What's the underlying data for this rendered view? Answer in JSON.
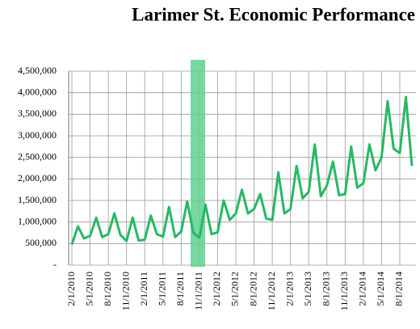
{
  "chart_data": {
    "type": "line",
    "title": "Larimer St. Economic Performance",
    "categories": [
      "2/1/2010",
      null,
      null,
      "5/1/2010",
      null,
      null,
      "8/1/2010",
      null,
      null,
      "11/1/2010",
      null,
      null,
      "2/1/2011",
      null,
      null,
      "5/1/2011",
      null,
      null,
      "8/1/2011",
      null,
      null,
      "11/1/2011",
      null,
      null,
      "2/1/2012",
      null,
      null,
      "5/1/2012",
      null,
      null,
      "8/1/2012",
      null,
      null,
      "11/1/2012",
      null,
      null,
      "2/1/2013",
      null,
      null,
      "5/1/2013",
      null,
      null,
      "8/1/2013",
      null,
      null,
      "11/1/2013",
      null,
      null,
      "2/1/2014",
      null,
      null,
      "5/1/2014",
      null,
      null,
      "8/1/2014",
      null,
      null
    ],
    "values": [
      480000,
      900000,
      620000,
      680000,
      1100000,
      650000,
      720000,
      1200000,
      700000,
      560000,
      1100000,
      570000,
      590000,
      1150000,
      720000,
      660000,
      1350000,
      650000,
      780000,
      1480000,
      750000,
      640000,
      1400000,
      720000,
      760000,
      1500000,
      1050000,
      1200000,
      1750000,
      1200000,
      1300000,
      1650000,
      1080000,
      1050000,
      2150000,
      1200000,
      1300000,
      2300000,
      1550000,
      1700000,
      2800000,
      1600000,
      1850000,
      2400000,
      1620000,
      1650000,
      2750000,
      1800000,
      1900000,
      2800000,
      2200000,
      2500000,
      3800000,
      2700000,
      2600000,
      3900000,
      2300000
    ],
    "color": "#27b864",
    "ylim": [
      0,
      4500000
    ],
    "yticks": [
      {
        "value": 0,
        "label": "-"
      },
      {
        "value": 500000,
        "label": "500,000"
      },
      {
        "value": 1000000,
        "label": "1,000,000"
      },
      {
        "value": 1500000,
        "label": "1,500,000"
      },
      {
        "value": 2000000,
        "label": "2,000,000"
      },
      {
        "value": 2500000,
        "label": "2,500,000"
      },
      {
        "value": 3000000,
        "label": "3,000,000"
      },
      {
        "value": 3500000,
        "label": "3,500,000"
      },
      {
        "value": 4000000,
        "label": "4,000,000"
      },
      {
        "value": 4500000,
        "label": "4,500,000"
      }
    ],
    "grid": true
  }
}
